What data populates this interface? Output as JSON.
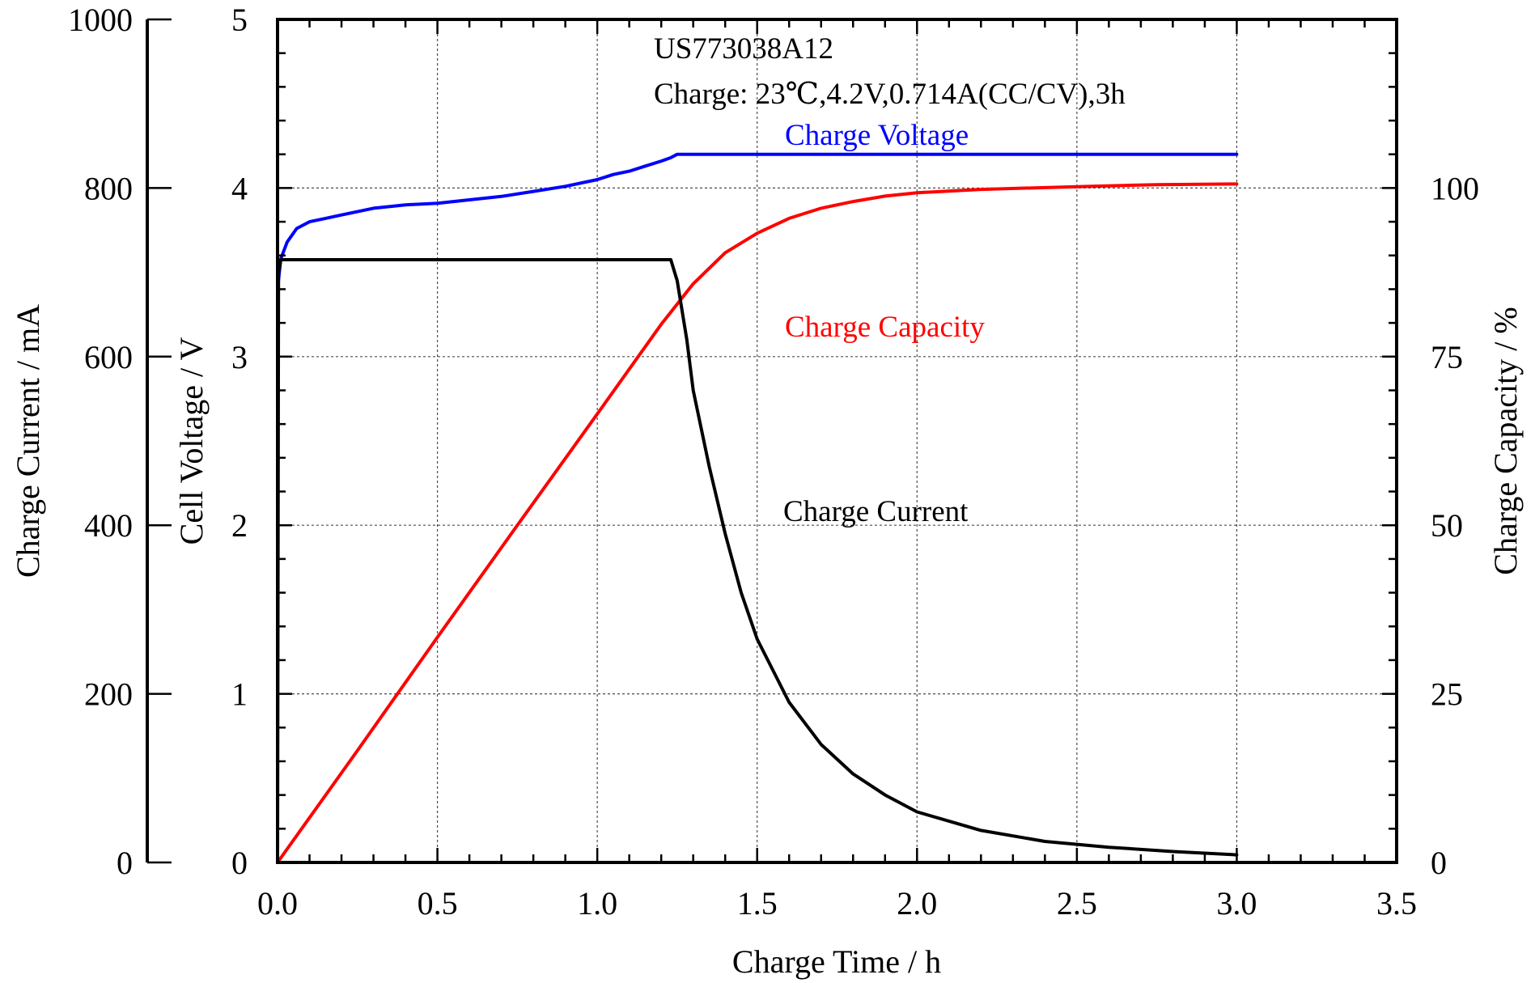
{
  "chart_data": {
    "type": "line",
    "title": "",
    "annotations": [
      "US773038A12",
      "Charge: 23℃,4.2V,0.714A(CC/CV),3h"
    ],
    "xlabel": "Charge Time / h",
    "xlim": [
      0,
      3.5
    ],
    "xticks": [
      "0.0",
      "0.5",
      "1.0",
      "1.5",
      "2.0",
      "2.5",
      "3.0",
      "3.5"
    ],
    "grid": true,
    "axes": {
      "current": {
        "label": "Charge Current / mA",
        "range": [
          0,
          1000
        ],
        "ticks": [
          "0",
          "200",
          "400",
          "600",
          "800",
          "1000"
        ],
        "side": "far-left"
      },
      "voltage": {
        "label": "Cell Voltage / V",
        "range": [
          0,
          5
        ],
        "ticks": [
          "0",
          "1",
          "2",
          "3",
          "4",
          "5"
        ],
        "side": "left"
      },
      "capacity": {
        "label": "Charge Capacity / %",
        "range": [
          0,
          125
        ],
        "ticks": [
          "0",
          "25",
          "50",
          "75",
          "100"
        ],
        "side": "right"
      }
    },
    "series": [
      {
        "name": "Charge Voltage",
        "axis": "voltage",
        "color": "#0000ff",
        "x": [
          0,
          0.01,
          0.03,
          0.06,
          0.1,
          0.15,
          0.2,
          0.3,
          0.4,
          0.5,
          0.6,
          0.7,
          0.8,
          0.9,
          1.0,
          1.05,
          1.1,
          1.15,
          1.2,
          1.23,
          1.25,
          1.5,
          2.0,
          2.5,
          3.0
        ],
        "y": [
          3.4,
          3.58,
          3.68,
          3.76,
          3.8,
          3.82,
          3.84,
          3.88,
          3.9,
          3.91,
          3.93,
          3.95,
          3.98,
          4.01,
          4.05,
          4.08,
          4.1,
          4.13,
          4.16,
          4.18,
          4.2,
          4.2,
          4.2,
          4.2,
          4.2
        ]
      },
      {
        "name": "Charge Capacity",
        "axis": "capacity",
        "color": "#ff0000",
        "x": [
          0,
          0.25,
          0.5,
          0.75,
          1.0,
          1.2,
          1.3,
          1.4,
          1.5,
          1.6,
          1.7,
          1.8,
          1.9,
          2.0,
          2.2,
          2.5,
          2.75,
          3.0
        ],
        "y": [
          0,
          16.6,
          33.4,
          50,
          66.5,
          79.8,
          85.8,
          90.4,
          93.3,
          95.5,
          97,
          98,
          98.8,
          99.3,
          99.8,
          100.2,
          100.5,
          100.6
        ]
      },
      {
        "name": "Charge Current",
        "axis": "current",
        "color": "#000000",
        "x": [
          0,
          0.003,
          0.01,
          0.5,
          1.0,
          1.23,
          1.25,
          1.28,
          1.3,
          1.35,
          1.4,
          1.45,
          1.5,
          1.6,
          1.7,
          1.8,
          1.9,
          2.0,
          2.2,
          2.4,
          2.6,
          2.8,
          3.0
        ],
        "y": [
          0,
          700,
          715,
          715,
          715,
          715,
          690,
          620,
          560,
          470,
          390,
          320,
          265,
          190,
          140,
          105,
          80,
          60,
          38,
          25,
          18,
          13,
          9
        ]
      }
    ]
  }
}
